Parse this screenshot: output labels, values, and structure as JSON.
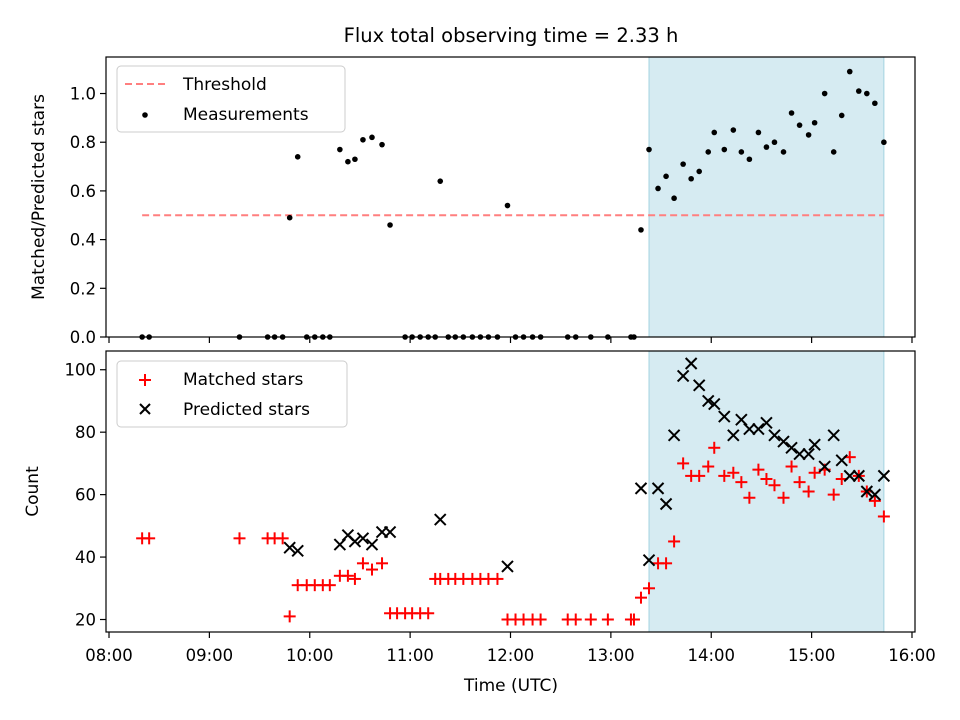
{
  "figure": {
    "title": "Flux total observing time = 2.33 h",
    "xlabel": "Time (UTC)",
    "x_ticks": [
      {
        "value": 8,
        "label": "08:00"
      },
      {
        "value": 9,
        "label": "09:00"
      },
      {
        "value": 10,
        "label": "10:00"
      },
      {
        "value": 11,
        "label": "11:00"
      },
      {
        "value": 12,
        "label": "12:00"
      },
      {
        "value": 13,
        "label": "13:00"
      },
      {
        "value": 14,
        "label": "14:00"
      },
      {
        "value": 15,
        "label": "15:00"
      },
      {
        "value": 16,
        "label": "16:00"
      }
    ],
    "xlim": [
      7.97,
      16.03
    ],
    "highlight_span": [
      13.38,
      15.72
    ]
  },
  "chart_data": [
    {
      "type": "scatter",
      "ylabel": "Matched/Predicted stars",
      "ylim": [
        0,
        1.15
      ],
      "y_ticks": [
        0.0,
        0.2,
        0.4,
        0.6,
        0.8,
        1.0
      ],
      "y_tick_labels": [
        "0.0",
        "0.2",
        "0.4",
        "0.6",
        "0.8",
        "1.0"
      ],
      "legend_position": "upper-left",
      "threshold": {
        "name": "Threshold",
        "value": 0.5,
        "x_range": [
          8.33,
          15.72
        ],
        "color": "#ff7f7f"
      },
      "series": [
        {
          "name": "Measurements",
          "marker": "dot",
          "color": "#000000",
          "x": [
            8.33,
            8.4,
            9.3,
            9.58,
            9.65,
            9.73,
            9.8,
            9.88,
            9.97,
            10.05,
            10.13,
            10.2,
            10.3,
            10.38,
            10.45,
            10.53,
            10.62,
            10.72,
            10.8,
            10.95,
            11.02,
            11.1,
            11.18,
            11.25,
            11.3,
            11.38,
            11.45,
            11.53,
            11.62,
            11.7,
            11.78,
            11.87,
            11.97,
            12.05,
            12.13,
            12.22,
            12.3,
            12.57,
            12.65,
            12.8,
            12.97,
            13.2,
            13.23,
            13.3,
            13.38,
            13.47,
            13.55,
            13.63,
            13.72,
            13.8,
            13.88,
            13.97,
            14.03,
            14.13,
            14.22,
            14.3,
            14.38,
            14.47,
            14.55,
            14.63,
            14.72,
            14.8,
            14.88,
            14.97,
            15.03,
            15.13,
            15.22,
            15.3,
            15.38,
            15.47,
            15.55,
            15.63,
            15.72
          ],
          "y": [
            0,
            0,
            0,
            0,
            0,
            0,
            0.49,
            0.74,
            0,
            0,
            0,
            0,
            0.77,
            0.72,
            0.73,
            0.81,
            0.82,
            0.79,
            0.46,
            0,
            0,
            0,
            0,
            0,
            0.64,
            0,
            0,
            0,
            0,
            0,
            0,
            0,
            0.54,
            0,
            0,
            0,
            0,
            0,
            0,
            0,
            0,
            0,
            0,
            0.44,
            0.77,
            0.61,
            0.66,
            0.57,
            0.71,
            0.65,
            0.68,
            0.76,
            0.84,
            0.77,
            0.85,
            0.76,
            0.73,
            0.84,
            0.78,
            0.8,
            0.76,
            0.92,
            0.87,
            0.83,
            0.88,
            1.0,
            0.76,
            0.91,
            1.09,
            1.01,
            1.0,
            0.96,
            0.8
          ]
        }
      ]
    },
    {
      "type": "scatter",
      "ylabel": "Count",
      "ylim": [
        16,
        106
      ],
      "y_ticks": [
        20,
        40,
        60,
        80,
        100
      ],
      "y_tick_labels": [
        "20",
        "40",
        "60",
        "80",
        "100"
      ],
      "legend_position": "upper-left",
      "series": [
        {
          "name": "Matched stars",
          "marker": "plus",
          "color": "#ff0000",
          "x": [
            8.33,
            8.4,
            9.3,
            9.58,
            9.65,
            9.73,
            9.8,
            9.88,
            9.97,
            10.05,
            10.13,
            10.2,
            10.3,
            10.38,
            10.45,
            10.53,
            10.62,
            10.72,
            10.8,
            10.87,
            10.95,
            11.02,
            11.1,
            11.18,
            11.25,
            11.3,
            11.38,
            11.45,
            11.53,
            11.62,
            11.7,
            11.78,
            11.87,
            11.97,
            12.05,
            12.13,
            12.22,
            12.3,
            12.57,
            12.65,
            12.8,
            12.97,
            13.2,
            13.23,
            13.3,
            13.38,
            13.47,
            13.55,
            13.63,
            13.72,
            13.8,
            13.88,
            13.97,
            14.03,
            14.13,
            14.22,
            14.3,
            14.38,
            14.47,
            14.55,
            14.63,
            14.72,
            14.8,
            14.88,
            14.97,
            15.03,
            15.13,
            15.22,
            15.3,
            15.38,
            15.47,
            15.55,
            15.63,
            15.72
          ],
          "y": [
            46,
            46,
            46,
            46,
            46,
            46,
            21,
            31,
            31,
            31,
            31,
            31,
            34,
            34,
            33,
            38,
            36,
            38,
            22,
            22,
            22,
            22,
            22,
            22,
            33,
            33,
            33,
            33,
            33,
            33,
            33,
            33,
            33,
            20,
            20,
            20,
            20,
            20,
            20,
            20,
            20,
            20,
            20,
            20,
            27,
            30,
            38,
            38,
            45,
            70,
            66,
            66,
            69,
            75,
            66,
            67,
            64,
            59,
            68,
            65,
            63,
            59,
            69,
            64,
            61,
            67,
            68,
            60,
            65,
            72,
            66,
            61,
            58,
            53
          ]
        },
        {
          "name": "Predicted stars",
          "marker": "x",
          "color": "#000000",
          "x": [
            9.8,
            9.88,
            10.3,
            10.38,
            10.45,
            10.53,
            10.62,
            10.72,
            10.8,
            11.3,
            11.97,
            13.3,
            13.38,
            13.47,
            13.55,
            13.63,
            13.72,
            13.8,
            13.88,
            13.97,
            14.03,
            14.13,
            14.22,
            14.3,
            14.38,
            14.47,
            14.55,
            14.63,
            14.72,
            14.8,
            14.88,
            14.97,
            15.03,
            15.13,
            15.22,
            15.3,
            15.38,
            15.47,
            15.55,
            15.63,
            15.72
          ],
          "y": [
            43,
            42,
            44,
            47,
            45,
            46,
            44,
            48,
            48,
            52,
            37,
            62,
            39,
            62,
            57,
            79,
            98,
            102,
            95,
            90,
            89,
            85,
            79,
            84,
            81,
            81,
            83,
            79,
            77,
            75,
            73,
            73,
            76,
            69,
            79,
            71,
            66,
            66,
            61,
            60,
            66
          ]
        }
      ]
    }
  ]
}
